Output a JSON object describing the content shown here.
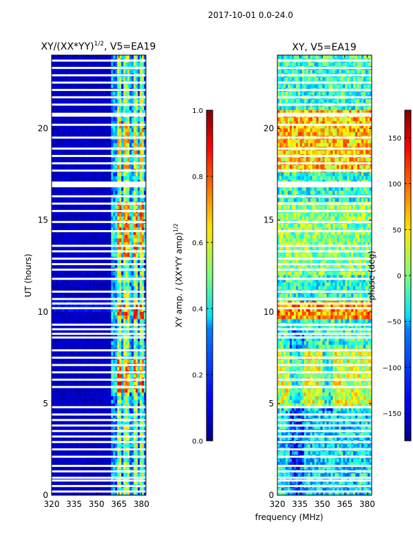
{
  "suptitle": "2017-10-01 0.0-24.0",
  "chart_data": [
    {
      "type": "heatmap",
      "title_main": "XY/(XX*YY)",
      "title_sup": "1/2",
      "title_tail": ", V5=EA19",
      "xlabel": "",
      "ylabel": "UT (hours)",
      "xlim": [
        320,
        383
      ],
      "ylim": [
        0,
        24
      ],
      "xticks": [
        320,
        335,
        350,
        365,
        380
      ],
      "yticks": [
        0,
        5,
        10,
        15,
        20
      ],
      "colormap": "jet",
      "colorbar": {
        "label_main": "XY amp. / (XX*YY amp)",
        "label_sup": "1/2",
        "range": [
          0.0,
          1.0
        ],
        "ticks": [
          "0.0",
          "0.2",
          "0.4",
          "0.6",
          "0.8",
          "1.0"
        ],
        "tick_values": [
          0.0,
          0.2,
          0.4,
          0.6,
          0.8,
          1.0
        ]
      }
    },
    {
      "type": "heatmap",
      "title": "XY, V5=EA19",
      "xlabel": "frequency (MHz)",
      "ylabel": "",
      "xlim": [
        320,
        383
      ],
      "ylim": [
        0,
        24
      ],
      "xticks": [
        320,
        335,
        350,
        365,
        380
      ],
      "yticks": [
        0,
        5,
        10,
        15,
        20
      ],
      "colormap": "jet",
      "colorbar": {
        "label": "phase (deg)",
        "range": [
          -180,
          180
        ],
        "ticks": [
          "−150",
          "−100",
          "−50",
          "0",
          "50",
          "100",
          "150"
        ],
        "tick_values": [
          -150,
          -100,
          -50,
          0,
          50,
          100,
          150
        ]
      }
    }
  ],
  "flagged_ut_hours": [
    0.2,
    0.5,
    0.8,
    0.95,
    1.3,
    1.6,
    2.1,
    2.5,
    2.9,
    3.2,
    3.5,
    3.8,
    4.1,
    4.4,
    4.8,
    5.9,
    6.3,
    6.7,
    7.1,
    7.5,
    7.9,
    8.6,
    8.8,
    9.05,
    9.3,
    10.2,
    10.45,
    10.7,
    11.1,
    11.8,
    12.3,
    12.6,
    12.9,
    13.3,
    13.6,
    14.4,
    14.9,
    15.5,
    15.9,
    16.3,
    16.85,
    16.95,
    17.05,
    17.7,
    18.1,
    18.5,
    18.9,
    19.5,
    20.2,
    20.7,
    20.8,
    21.3,
    21.7,
    22.1,
    22.5,
    22.9,
    23.3,
    23.7
  ]
}
